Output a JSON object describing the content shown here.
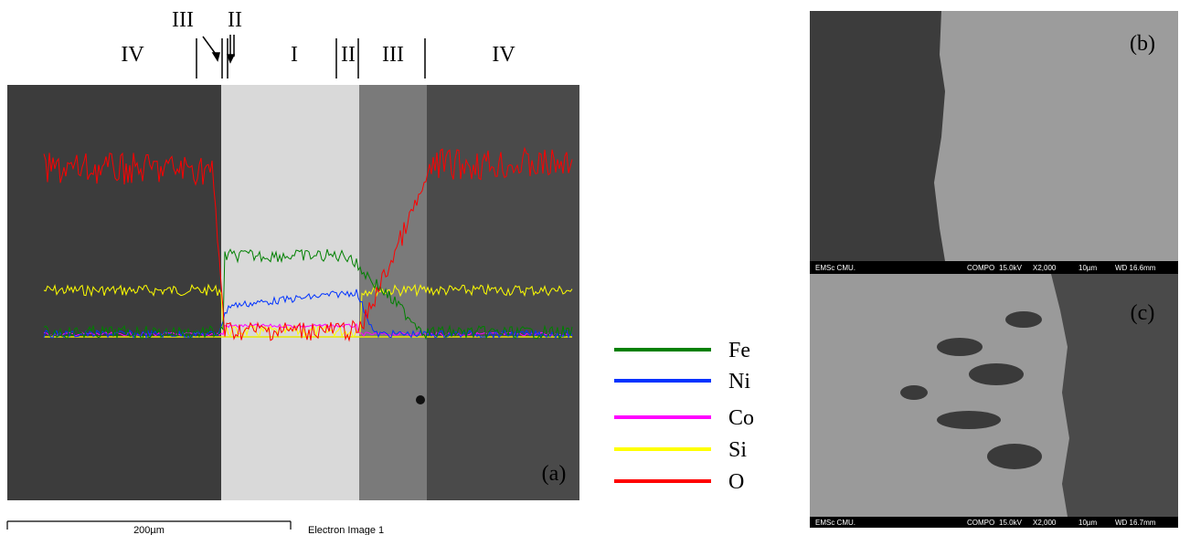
{
  "panel_a": {
    "zone_labels": [
      "IV",
      "I",
      "II",
      "III",
      "IV"
    ],
    "top_labels": [
      "III",
      "II"
    ],
    "panel_label": "(a)",
    "scale_bar": "200µm",
    "caption": "Electron Image 1"
  },
  "legend": [
    {
      "name": "Fe",
      "color": "#008000"
    },
    {
      "name": "Ni",
      "color": "#0033ff"
    },
    {
      "name": "Co",
      "color": "#ff00ff"
    },
    {
      "name": "Si",
      "color": "#ffff00"
    },
    {
      "name": "O",
      "color": "#ff0000"
    }
  ],
  "panel_b": {
    "label": "(b)",
    "info_bar": [
      "EMSc CMU.",
      "COMPO",
      "15.0kV",
      "X2,000",
      "10µm",
      "WD 16.6mm"
    ]
  },
  "panel_c": {
    "label": "(c)",
    "info_bar": [
      "EMSc CMU.",
      "COMPO",
      "15.0kV",
      "X2,000",
      "10µm",
      "WD 16.7mm"
    ]
  }
}
